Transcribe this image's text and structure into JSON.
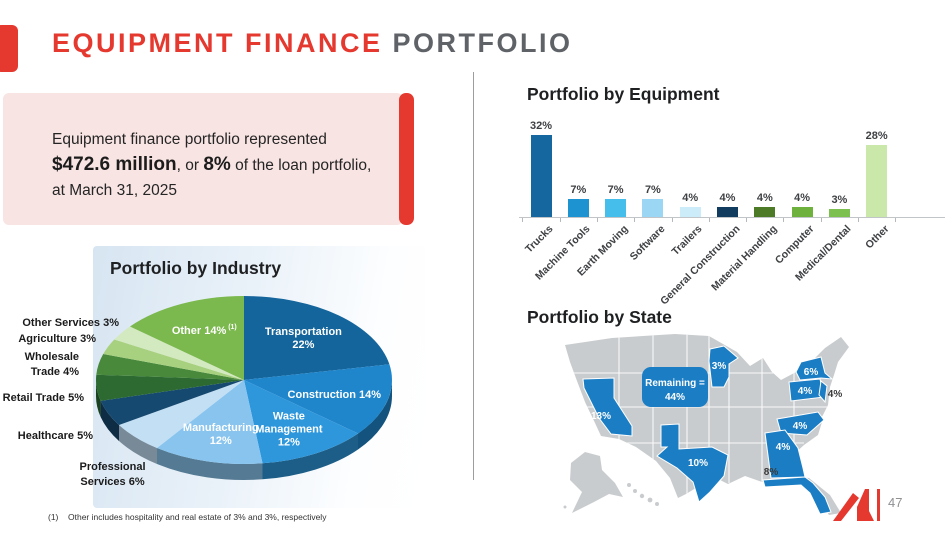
{
  "slide": {
    "title_primary": "EQUIPMENT FINANCE",
    "title_secondary": " PORTFOLIO",
    "page_number": "47",
    "footnote_marker": "(1)",
    "footnote_text": "Other includes hospitality and real estate of 3% and 3%, respectively"
  },
  "callout": {
    "intro": "Equipment finance portfolio represented\n",
    "amount": "$472.6 million",
    "connector": ", or ",
    "percent": "8%",
    "suffix": " of the loan portfolio,",
    "date_line": "\nat March 31, 2025"
  },
  "chart_data": [
    {
      "id": "industry_pie",
      "type": "pie",
      "title": "Portfolio by Industry",
      "slices": [
        {
          "label": "Transportation",
          "value": 22,
          "color": "#14659C",
          "inside": [
            "Transportation",
            "22%"
          ]
        },
        {
          "label": "Construction",
          "value": 14,
          "color": "#1F86CC",
          "inside": [
            "Construction 14%"
          ]
        },
        {
          "label": "Waste Management",
          "value": 12,
          "color": "#2E97DC",
          "inside": [
            "Waste",
            "Management",
            "12%"
          ]
        },
        {
          "label": "Manufacturing",
          "value": 12,
          "color": "#88C4EE",
          "inside": [
            "Manufacturing",
            "12%"
          ]
        },
        {
          "label": "Professional Services",
          "value": 6,
          "color": "#C2DFF4",
          "outside": [
            "Professional",
            "Services 6%"
          ]
        },
        {
          "label": "Healthcare",
          "value": 5,
          "color": "#16496F",
          "outside": [
            "Healthcare 5%"
          ]
        },
        {
          "label": "Retail Trade",
          "value": 5,
          "color": "#2C6A31",
          "outside": [
            "Retail Trade 5%"
          ]
        },
        {
          "label": "Wholesale Trade",
          "value": 4,
          "color": "#49893B",
          "outside": [
            "Wholesale",
            "Trade 4%"
          ]
        },
        {
          "label": "Agriculture",
          "value": 3,
          "color": "#A8D17F",
          "outside": [
            "Agriculture 3%"
          ]
        },
        {
          "label": "Other Services",
          "value": 3,
          "color": "#D3E9BF",
          "outside": [
            "Other Services 3%"
          ]
        },
        {
          "label": "Other",
          "value": 14,
          "color": "#7BB84D",
          "inside": [
            "Other 14%"
          ],
          "sup": "(1)"
        }
      ]
    },
    {
      "id": "equipment_bar",
      "type": "bar",
      "title": "Portfolio by Equipment",
      "categories": [
        "Trucks",
        "Machine Tools",
        "Earth Moving",
        "Software",
        "Trailers",
        "General Construction",
        "Material Handling",
        "Computer",
        "Medical/Dental",
        "Other"
      ],
      "values": [
        32,
        7,
        7,
        7,
        4,
        4,
        4,
        4,
        3,
        28
      ],
      "display_labels": [
        "32%",
        "7%",
        "7%",
        "7%",
        "4%",
        "4%",
        "4%",
        "4%",
        "3%",
        "28%"
      ],
      "colors": [
        "#14689F",
        "#1D93D2",
        "#45BEEC",
        "#9BD7F5",
        "#CDECFA",
        "#123C5F",
        "#4D7A27",
        "#6FB13D",
        "#7CC04F",
        "#C9E8AA"
      ],
      "ylabel": "",
      "xlabel": "",
      "grid": false
    },
    {
      "id": "state_map",
      "type": "map",
      "title": "Portfolio by State",
      "states": [
        {
          "state": "California",
          "label": "13%"
        },
        {
          "state": "Texas",
          "label": "10%"
        },
        {
          "state": "Minnesota",
          "label": "3%"
        },
        {
          "state": "New York",
          "label": "6%"
        },
        {
          "state": "Pennsylvania",
          "label": "4%"
        },
        {
          "state": "New Jersey",
          "label": "4%"
        },
        {
          "state": "North Carolina",
          "label": "4%"
        },
        {
          "state": "Georgia",
          "label": "4%"
        },
        {
          "state": "Florida",
          "label": "8%"
        }
      ],
      "remaining_label": "Remaining =",
      "remaining_value": "44%",
      "highlight_color": "#1B7EC4",
      "base_color": "#C9CCCE"
    }
  ]
}
